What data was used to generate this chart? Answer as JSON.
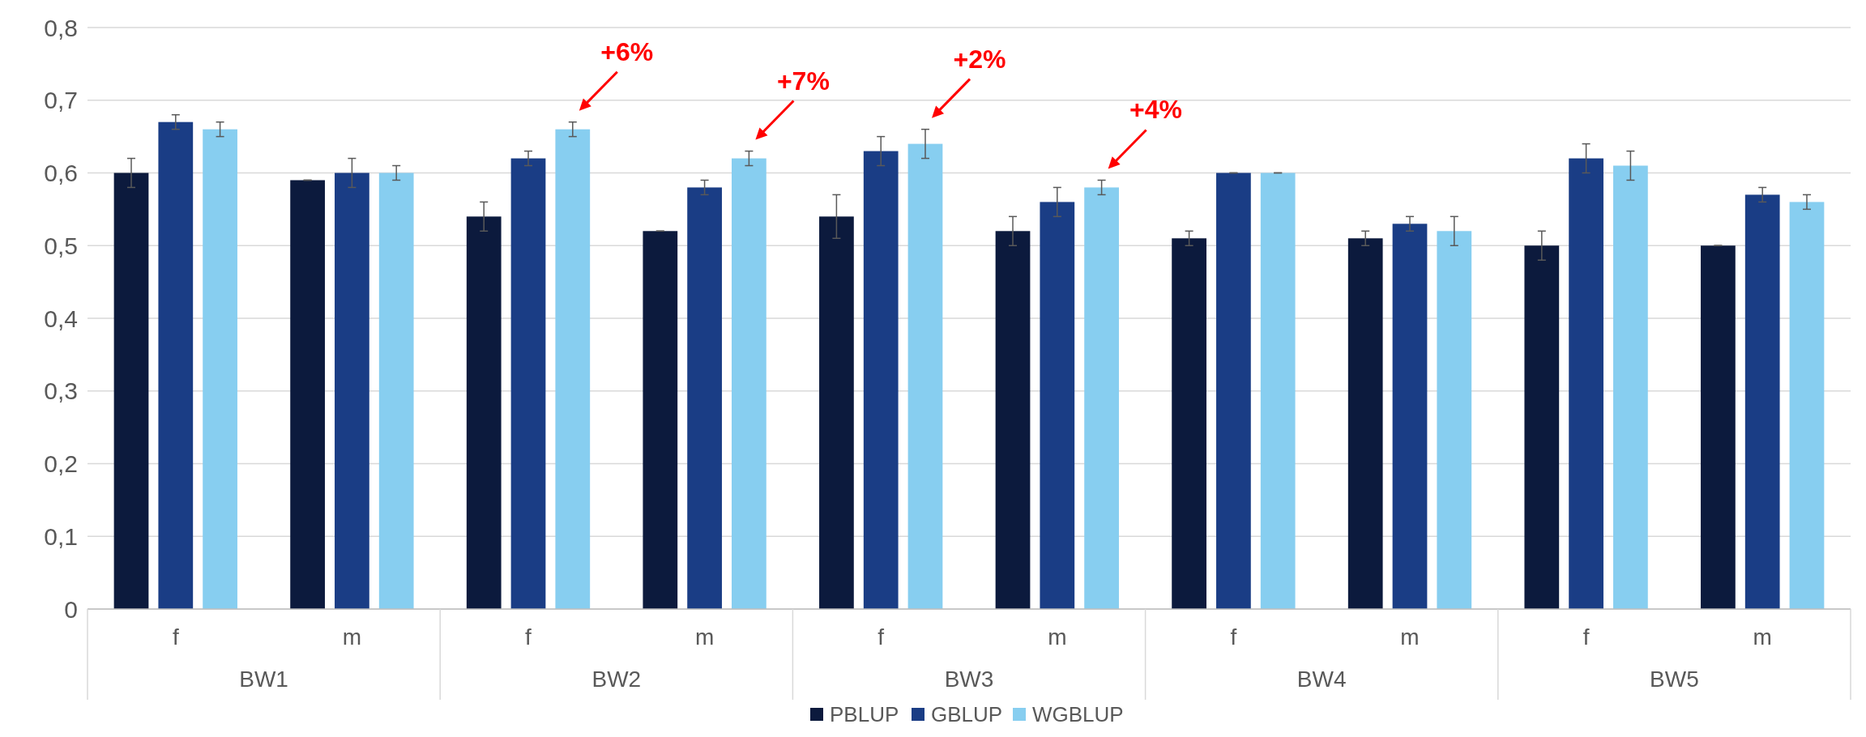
{
  "chart_data": {
    "type": "bar",
    "categories": [
      "f",
      "m",
      "f",
      "m",
      "f",
      "m",
      "f",
      "m",
      "f",
      "m"
    ],
    "series": [
      {
        "name": "PBLUP",
        "color": "#0c1a3d",
        "values": [
          0.6,
          0.59,
          0.54,
          0.52,
          0.54,
          0.52,
          0.51,
          0.51,
          0.5,
          0.5
        ],
        "errors": [
          0.02,
          0,
          0.02,
          0,
          0.03,
          0.02,
          0.01,
          0.01,
          0.02,
          0
        ]
      },
      {
        "name": "GBLUP",
        "color": "#1a3d85",
        "values": [
          0.67,
          0.6,
          0.62,
          0.58,
          0.63,
          0.56,
          0.6,
          0.53,
          0.62,
          0.57
        ],
        "errors": [
          0.01,
          0.02,
          0.01,
          0.01,
          0.02,
          0.02,
          0,
          0.01,
          0.02,
          0.01
        ]
      },
      {
        "name": "WGBLUP",
        "color": "#87cef0",
        "values": [
          0.66,
          0.6,
          0.66,
          0.62,
          0.64,
          0.58,
          0.6,
          0.52,
          0.61,
          0.56
        ],
        "errors": [
          0.01,
          0.01,
          0.01,
          0.01,
          0.02,
          0.01,
          0,
          0.02,
          0.02,
          0.01
        ]
      }
    ],
    "ylim": [
      0,
      0.8
    ],
    "yticks": [
      {
        "value": 0,
        "label": "0"
      },
      {
        "value": 0.1,
        "label": "0,1"
      },
      {
        "value": 0.2,
        "label": "0,2"
      },
      {
        "value": 0.3,
        "label": "0,3"
      },
      {
        "value": 0.4,
        "label": "0,4"
      },
      {
        "value": 0.5,
        "label": "0,5"
      },
      {
        "value": 0.6,
        "label": "0,6"
      },
      {
        "value": 0.7,
        "label": "0,7"
      },
      {
        "value": 0.8,
        "label": "0,8"
      }
    ],
    "grid": "y",
    "legend": "bottom",
    "annotations": [
      "BW1",
      "BW2",
      "BW3",
      "BW4",
      "BW5",
      "+6%",
      "+7%",
      "+2%",
      "+4%"
    ]
  }
}
